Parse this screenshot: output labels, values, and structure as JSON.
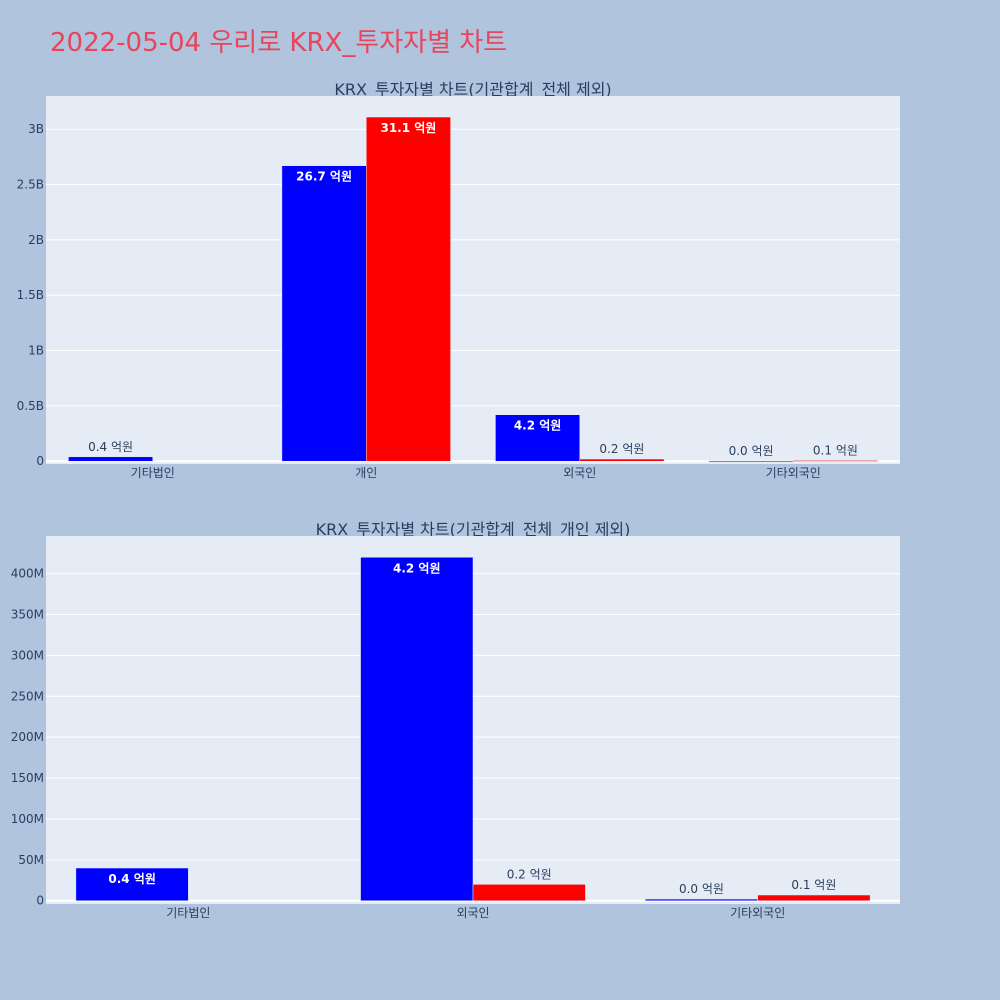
{
  "page": {
    "title": "2022-05-04 우리로 KRX_투자자별 차트"
  },
  "colors": {
    "buy": "#0000ff",
    "sell": "#ff0000",
    "plot_bg": "#e5ecf6",
    "page_bg": "#b0c4de",
    "title": "#e8455a"
  },
  "chart_data": [
    {
      "type": "bar",
      "title": "KRX_투자자별 차트(기관합계_전체 제외)",
      "categories": [
        "기타법인",
        "개인",
        "외국인",
        "기타외국인"
      ],
      "series": [
        {
          "values": [
            40000000,
            2670000000,
            420000000,
            2000000
          ],
          "labels": [
            "0.4 억원",
            "26.7 억원",
            "4.2 억원",
            "0.0 억원"
          ],
          "color": "#0000ff"
        },
        {
          "values": [
            0,
            3110000000,
            20000000,
            7000000
          ],
          "labels": [
            "",
            "31.1 억원",
            "0.2 억원",
            "0.1 억원"
          ],
          "color": "#ff0000"
        }
      ],
      "ylim": [
        -25000000,
        3300000000
      ],
      "yticks": [
        0,
        500000000,
        1000000000,
        1500000000,
        2000000000,
        2500000000,
        3000000000
      ],
      "yticklabels": [
        "0",
        "0.5B",
        "1B",
        "1.5B",
        "2B",
        "2.5B",
        "3B"
      ],
      "grid": true
    },
    {
      "type": "bar",
      "title": "KRX_투자자별 차트(기관합계_전체_개인 제외)",
      "categories": [
        "기타법인",
        "외국인",
        "기타외국인"
      ],
      "series": [
        {
          "values": [
            40000000,
            420000000,
            2000000
          ],
          "labels": [
            "0.4 억원",
            "4.2 억원",
            "0.0 억원"
          ],
          "color": "#0000ff"
        },
        {
          "values": [
            0,
            20000000,
            7000000
          ],
          "labels": [
            "",
            "0.2 억원",
            "0.1 억원"
          ],
          "color": "#ff0000"
        }
      ],
      "ylim": [
        -4000000,
        446000000
      ],
      "yticks": [
        0,
        50000000,
        100000000,
        150000000,
        200000000,
        250000000,
        300000000,
        350000000,
        400000000
      ],
      "yticklabels": [
        "0",
        "50M",
        "100M",
        "150M",
        "200M",
        "250M",
        "300M",
        "350M",
        "400M"
      ],
      "grid": true
    }
  ]
}
